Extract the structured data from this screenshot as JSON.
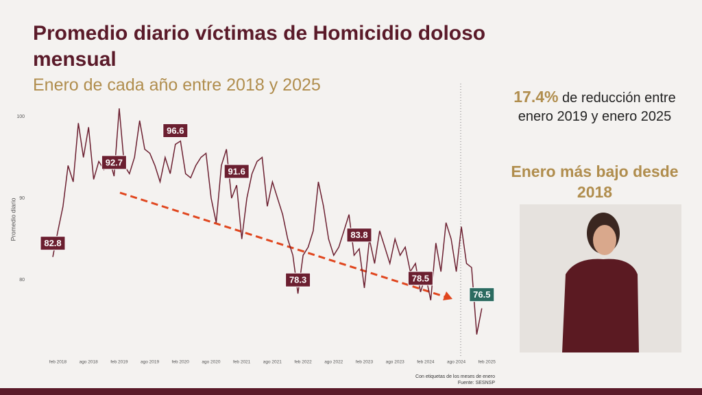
{
  "chart_data": {
    "type": "line",
    "title": "Promedio diario víctimas de Homicidio doloso mensual",
    "subtitle": "Enero de cada año entre 2018 y 2025",
    "y_label": "Promedio diario",
    "notes": [
      "Con etiquetas de los meses de enero",
      "Fuente: SESNSP"
    ],
    "categories": [
      null,
      "feb 2018",
      null,
      null,
      null,
      null,
      null,
      "ago 2018",
      null,
      null,
      null,
      null,
      null,
      "feb 2019",
      null,
      null,
      null,
      null,
      null,
      "ago 2019",
      null,
      null,
      null,
      null,
      null,
      "feb 2020",
      null,
      null,
      null,
      null,
      null,
      "ago 2020",
      null,
      null,
      null,
      null,
      null,
      "feb 2021",
      null,
      null,
      null,
      null,
      null,
      "ago 2021",
      null,
      null,
      null,
      null,
      null,
      "feb 2022",
      null,
      null,
      null,
      null,
      null,
      "ago 2022",
      null,
      null,
      null,
      null,
      null,
      "feb 2023",
      null,
      null,
      null,
      null,
      null,
      "ago 2023",
      null,
      null,
      null,
      null,
      null,
      "feb 2024",
      null,
      null,
      null,
      null,
      null,
      "ago 2024",
      null,
      null,
      null,
      null,
      null,
      "feb 2025"
    ],
    "series": [
      {
        "name": "Promedio diario",
        "color": "#6b1f30",
        "values": [
          82.8,
          86.0,
          89.0,
          94.0,
          92.0,
          99.2,
          95.0,
          98.7,
          92.3,
          94.5,
          93.5,
          95.0,
          92.7,
          101.0,
          94.0,
          93.0,
          95.0,
          99.5,
          96.0,
          95.5,
          94.0,
          92.0,
          95.0,
          93.0,
          96.6,
          97.0,
          93.0,
          92.5,
          94.0,
          95.0,
          95.5,
          90.0,
          87.0,
          94.0,
          96.0,
          90.0,
          91.6,
          85.0,
          90.0,
          93.0,
          94.5,
          95.0,
          89.0,
          92.0,
          90.0,
          88.0,
          85.0,
          83.0,
          78.3,
          83.0,
          84.0,
          86.0,
          92.0,
          89.0,
          85.0,
          83.0,
          84.0,
          86.0,
          88.0,
          83.0,
          83.8,
          79.0,
          85.0,
          82.0,
          86.0,
          84.0,
          82.0,
          85.0,
          83.0,
          84.0,
          81.0,
          82.0,
          78.5,
          80.5,
          77.5,
          84.5,
          81.0,
          87.0,
          85.0,
          81.0,
          86.5,
          82.0,
          81.5,
          73.3,
          76.5,
          null
        ]
      }
    ],
    "ylim": [
      72,
      101
    ],
    "yticks": [
      80,
      90,
      100
    ]
  },
  "panel": {
    "highlight": "17.4%",
    "text": "de reducción entre enero 2019 y enero 2025",
    "headline": "Enero más bajo desde 2018"
  }
}
